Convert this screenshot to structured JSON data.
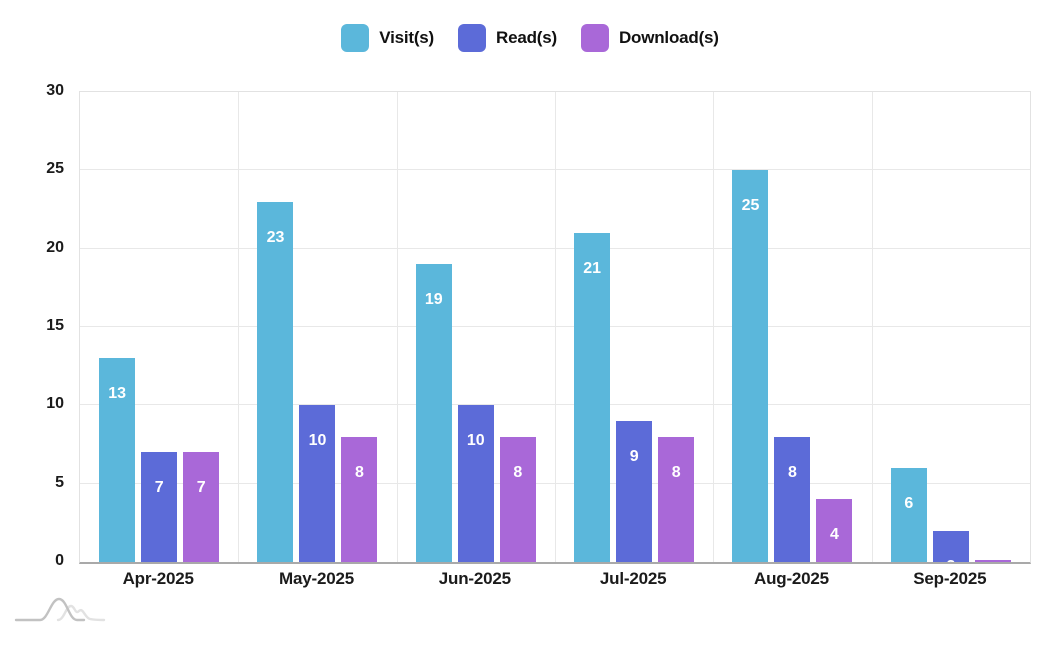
{
  "chart_data": {
    "type": "bar",
    "title": "",
    "xlabel": "",
    "ylabel": "",
    "categories": [
      "Apr-2025",
      "May-2025",
      "Jun-2025",
      "Jul-2025",
      "Aug-2025",
      "Sep-2025"
    ],
    "series": [
      {
        "name": "Visit(s)",
        "color": "#5bb7db",
        "values": [
          13,
          23,
          19,
          21,
          25,
          6
        ]
      },
      {
        "name": "Read(s)",
        "color": "#5c6bd8",
        "values": [
          7,
          10,
          10,
          9,
          8,
          2
        ]
      },
      {
        "name": "Download(s)",
        "color": "#a968d8",
        "values": [
          7,
          8,
          8,
          8,
          4,
          0
        ]
      }
    ],
    "ylim": [
      0,
      30
    ],
    "yticks": [
      0,
      5,
      10,
      15,
      20,
      25,
      30
    ],
    "grid": true,
    "legend_position": "top",
    "bar_value_labels_color": "#ffffff"
  },
  "colors": {
    "grid": "#e8e8e8",
    "axis_line": "#a9a9a9",
    "tick_text": "#1b1b1b",
    "legend_text": "#111111",
    "logo_stroke_dark": "#c2c2c2",
    "logo_stroke_light": "#e2e2e2"
  },
  "icons": {
    "brand_logo": "overlapping-curves-logo"
  }
}
